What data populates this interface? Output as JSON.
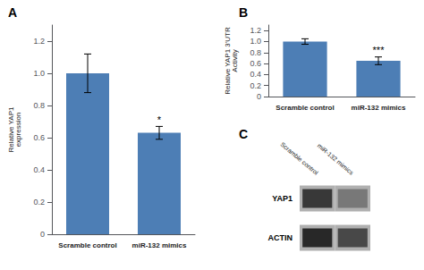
{
  "chart_data": [
    {
      "type": "bar",
      "title": "A",
      "categories": [
        "Scramble control",
        "miR-132 mimics"
      ],
      "values": [
        1.0,
        0.63
      ],
      "errors": [
        0.12,
        0.04
      ],
      "color": "#4d7eb5",
      "ylabel": "Relative YAP1\nexpression",
      "ylim": [
        0,
        1.3
      ],
      "yticks": [
        0,
        0.2,
        0.4,
        0.6,
        0.8,
        {
          "value": 1.0,
          "label": "1.0"
        },
        1.2
      ],
      "annotations": [
        {
          "category": "miR-132 mimics",
          "text": "*"
        }
      ],
      "grid": false
    },
    {
      "type": "bar",
      "title": "B",
      "categories": [
        "Scramble control",
        "miR-132 mimics"
      ],
      "values": [
        1.0,
        0.65
      ],
      "errors": [
        0.05,
        0.07
      ],
      "color": "#4d7eb5",
      "ylabel": "Relative YAP1 3'UTR\nActivity",
      "ylim": [
        0,
        1.3
      ],
      "yticks": [
        0,
        0.2,
        0.4,
        0.6,
        0.8,
        {
          "value": 1.0,
          "label": "1.0"
        },
        1.2
      ],
      "annotations": [
        {
          "category": "miR-132 mimics",
          "text": "***"
        }
      ],
      "grid": false
    },
    {
      "type": "blot",
      "title": "C",
      "categories": [
        "Scramble control",
        "miR-132 mimics"
      ],
      "series": [
        {
          "name": "YAP1",
          "colors": [
            "#383838",
            "#787878"
          ]
        },
        {
          "name": "ACTIN",
          "colors": [
            "#282828",
            "#484848"
          ]
        }
      ],
      "color": "#b0b0b0"
    }
  ]
}
